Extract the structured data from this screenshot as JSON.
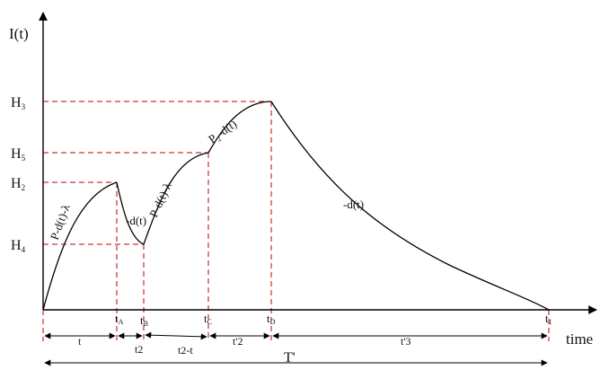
{
  "axes": {
    "y_label": "I(t)",
    "x_label": "time"
  },
  "levels": [
    "H3",
    "H5",
    "H2",
    "H4"
  ],
  "level_labels": {
    "H3": {
      "main": "H",
      "sub": "3"
    },
    "H5": {
      "main": "H",
      "sub": "5"
    },
    "H2": {
      "main": "H",
      "sub": "2"
    },
    "H4": {
      "main": "H",
      "sub": "4"
    }
  },
  "time_points": {
    "tA": {
      "main": "t",
      "sub": "A"
    },
    "tB": {
      "main": "t",
      "sub": "B"
    },
    "tC": {
      "main": "t",
      "sub": "C"
    },
    "tD": {
      "main": "t",
      "sub": "D"
    },
    "t1": {
      "main": "t",
      "sub": "1"
    }
  },
  "curve_labels": {
    "seg1": "P-d(t)-λ",
    "seg2": "-d(t)",
    "seg3": "P-d(t)-λ",
    "seg4": "P₂-d(t)",
    "seg5": "-d(t)"
  },
  "intervals": {
    "i1": "t",
    "i2": "t2",
    "i3": "t2-t",
    "i4": "t'2",
    "i5": "t'3",
    "total": "T'"
  },
  "colors": {
    "curve": "#000000",
    "guide": "#c00000"
  }
}
